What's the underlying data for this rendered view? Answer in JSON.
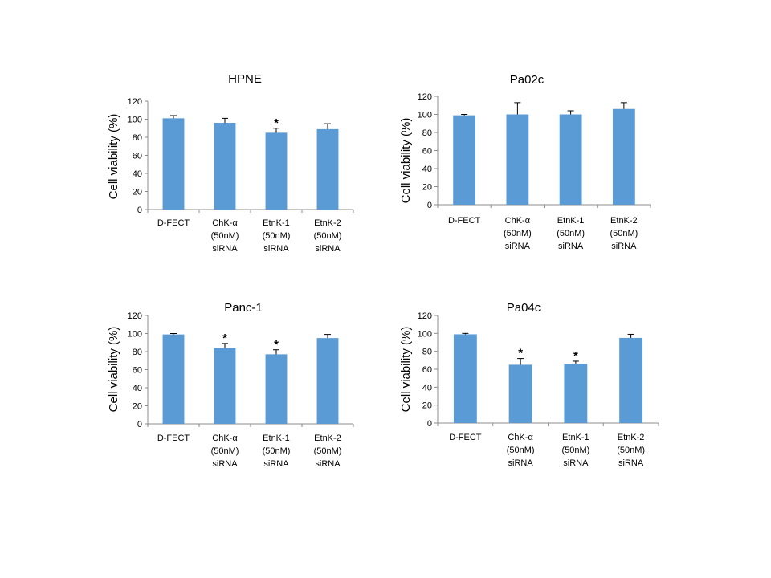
{
  "chart_data": [
    {
      "type": "bar",
      "title": "HPNE",
      "ylabel": "Cell viability (%)",
      "xlabel": "",
      "ylim": [
        0,
        120
      ],
      "yticks": [
        0,
        20,
        40,
        60,
        80,
        100,
        120
      ],
      "categories": [
        [
          "D-FECT"
        ],
        [
          "ChK-α",
          "(50nM)",
          "siRNA"
        ],
        [
          "EtnK-1",
          "(50nM)",
          "siRNA"
        ],
        [
          "EtnK-2",
          "(50nM)",
          "siRNA"
        ]
      ],
      "values": [
        101,
        96,
        85,
        89
      ],
      "errors": [
        3,
        5,
        5,
        6
      ],
      "significance": [
        "",
        "",
        "*",
        ""
      ],
      "bar_color": "#5b9bd5"
    },
    {
      "type": "bar",
      "title": "Pa02c",
      "ylabel": "Cell viability (%)",
      "xlabel": "",
      "ylim": [
        0,
        120
      ],
      "yticks": [
        0,
        20,
        40,
        60,
        80,
        100,
        120
      ],
      "categories": [
        [
          "D-FECT"
        ],
        [
          "ChK-α",
          "(50nM)",
          "siRNA"
        ],
        [
          "EtnK-1",
          "(50nM)",
          "siRNA"
        ],
        [
          "EtnK-2",
          "(50nM)",
          "siRNA"
        ]
      ],
      "values": [
        99,
        100,
        100,
        106
      ],
      "errors": [
        1,
        13,
        4,
        7
      ],
      "significance": [
        "",
        "",
        "",
        ""
      ],
      "bar_color": "#5b9bd5"
    },
    {
      "type": "bar",
      "title": "Panc-1",
      "ylabel": "Cell viability (%)",
      "xlabel": "",
      "ylim": [
        0,
        120
      ],
      "yticks": [
        0,
        20,
        40,
        60,
        80,
        100,
        120
      ],
      "categories": [
        [
          "D-FECT"
        ],
        [
          "ChK-α",
          "(50nM)",
          "siRNA"
        ],
        [
          "EtnK-1",
          "(50nM)",
          "siRNA"
        ],
        [
          "EtnK-2",
          "(50nM)",
          "siRNA"
        ]
      ],
      "values": [
        99,
        84,
        77,
        95
      ],
      "errors": [
        1,
        5,
        5,
        4
      ],
      "significance": [
        "",
        "*",
        "*",
        ""
      ],
      "bar_color": "#5b9bd5"
    },
    {
      "type": "bar",
      "title": "Pa04c",
      "ylabel": "Cell viability (%)",
      "xlabel": "",
      "ylim": [
        0,
        120
      ],
      "yticks": [
        0,
        20,
        40,
        60,
        80,
        100,
        120
      ],
      "categories": [
        [
          "D-FECT"
        ],
        [
          "ChK-α",
          "(50nM)",
          "siRNA"
        ],
        [
          "EtnK-1",
          "(50nM)",
          "siRNA"
        ],
        [
          "EtnK-2",
          "(50nM)",
          "siRNA"
        ]
      ],
      "values": [
        99,
        65,
        66,
        95
      ],
      "errors": [
        1,
        7,
        3,
        4
      ],
      "significance": [
        "",
        "*",
        "*",
        ""
      ],
      "bar_color": "#5b9bd5"
    }
  ]
}
